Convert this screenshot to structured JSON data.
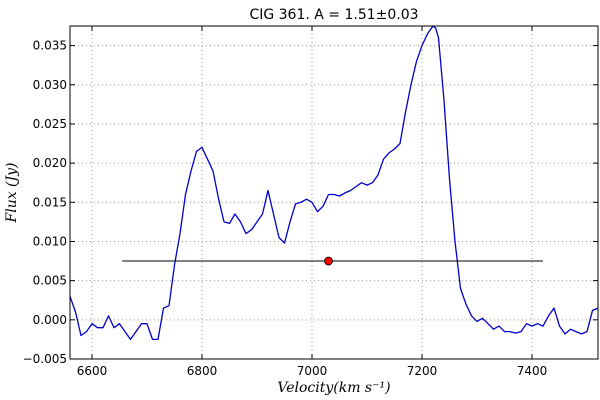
{
  "chart_data": {
    "type": "line",
    "title": "CIG 361. A = 1.51±0.03",
    "xlabel": "Velocity(km s⁻¹)",
    "ylabel": "Flux (Jy)",
    "xlim": [
      6560,
      7520
    ],
    "ylim": [
      -0.005,
      0.0375
    ],
    "x_ticks": [
      6600,
      6800,
      7000,
      7200,
      7400
    ],
    "x_tick_labels": [
      "6600",
      "6800",
      "7000",
      "7200",
      "7400"
    ],
    "y_ticks": [
      -0.005,
      0.0,
      0.005,
      0.01,
      0.015,
      0.02,
      0.025,
      0.03,
      0.035
    ],
    "y_tick_labels": [
      "−0.005",
      "0.000",
      "0.005",
      "0.010",
      "0.015",
      "0.020",
      "0.025",
      "0.030",
      "0.035"
    ],
    "grid": true,
    "series": [
      {
        "color": "#0000cc",
        "x": [
          6560,
          6570,
          6580,
          6590,
          6600,
          6610,
          6620,
          6630,
          6640,
          6650,
          6660,
          6670,
          6680,
          6690,
          6700,
          6710,
          6720,
          6730,
          6740,
          6750,
          6760,
          6770,
          6780,
          6790,
          6800,
          6810,
          6820,
          6830,
          6840,
          6850,
          6860,
          6870,
          6880,
          6890,
          6900,
          6910,
          6920,
          6930,
          6940,
          6950,
          6960,
          6970,
          6980,
          6990,
          7000,
          7010,
          7020,
          7030,
          7040,
          7050,
          7060,
          7070,
          7080,
          7090,
          7100,
          7110,
          7120,
          7130,
          7140,
          7150,
          7160,
          7170,
          7180,
          7190,
          7200,
          7210,
          7220,
          7225,
          7230,
          7240,
          7250,
          7260,
          7270,
          7280,
          7290,
          7300,
          7310,
          7320,
          7330,
          7340,
          7350,
          7360,
          7370,
          7380,
          7390,
          7400,
          7410,
          7420,
          7430,
          7440,
          7450,
          7460,
          7470,
          7480,
          7490,
          7500,
          7510,
          7520
        ],
        "y": [
          0.003,
          0.001,
          -0.002,
          -0.0015,
          -0.0005,
          -0.001,
          -0.001,
          0.0005,
          -0.001,
          -0.0005,
          -0.0015,
          -0.0025,
          -0.0015,
          -0.0005,
          -0.0005,
          -0.0025,
          -0.0025,
          0.0015,
          0.0018,
          0.007,
          0.011,
          0.016,
          0.019,
          0.0215,
          0.022,
          0.0205,
          0.019,
          0.0155,
          0.0125,
          0.0123,
          0.0135,
          0.0125,
          0.011,
          0.0115,
          0.0125,
          0.0135,
          0.0165,
          0.0135,
          0.0105,
          0.0098,
          0.0125,
          0.0148,
          0.015,
          0.0154,
          0.015,
          0.0138,
          0.0145,
          0.016,
          0.016,
          0.0158,
          0.0162,
          0.0165,
          0.017,
          0.0175,
          0.0172,
          0.0175,
          0.0185,
          0.0205,
          0.0213,
          0.0218,
          0.0225,
          0.0265,
          0.03,
          0.033,
          0.035,
          0.0365,
          0.0375,
          0.0372,
          0.036,
          0.028,
          0.018,
          0.01,
          0.004,
          0.002,
          0.0005,
          -0.0002,
          0.0002,
          -0.0005,
          -0.0012,
          -0.0008,
          -0.0015,
          -0.0015,
          -0.0017,
          -0.0015,
          -0.0005,
          -0.0008,
          -0.0005,
          -0.0008,
          0.0005,
          0.0015,
          -0.0008,
          -0.0018,
          -0.0012,
          -0.0015,
          -0.0018,
          -0.0015,
          0.0012,
          0.0015
        ]
      }
    ],
    "hline": {
      "x_start": 6655,
      "x_end": 7420,
      "y": 0.0075,
      "color": "#000000"
    },
    "marker": {
      "x": 7030,
      "y": 0.0075,
      "color": "#ff0000"
    }
  }
}
